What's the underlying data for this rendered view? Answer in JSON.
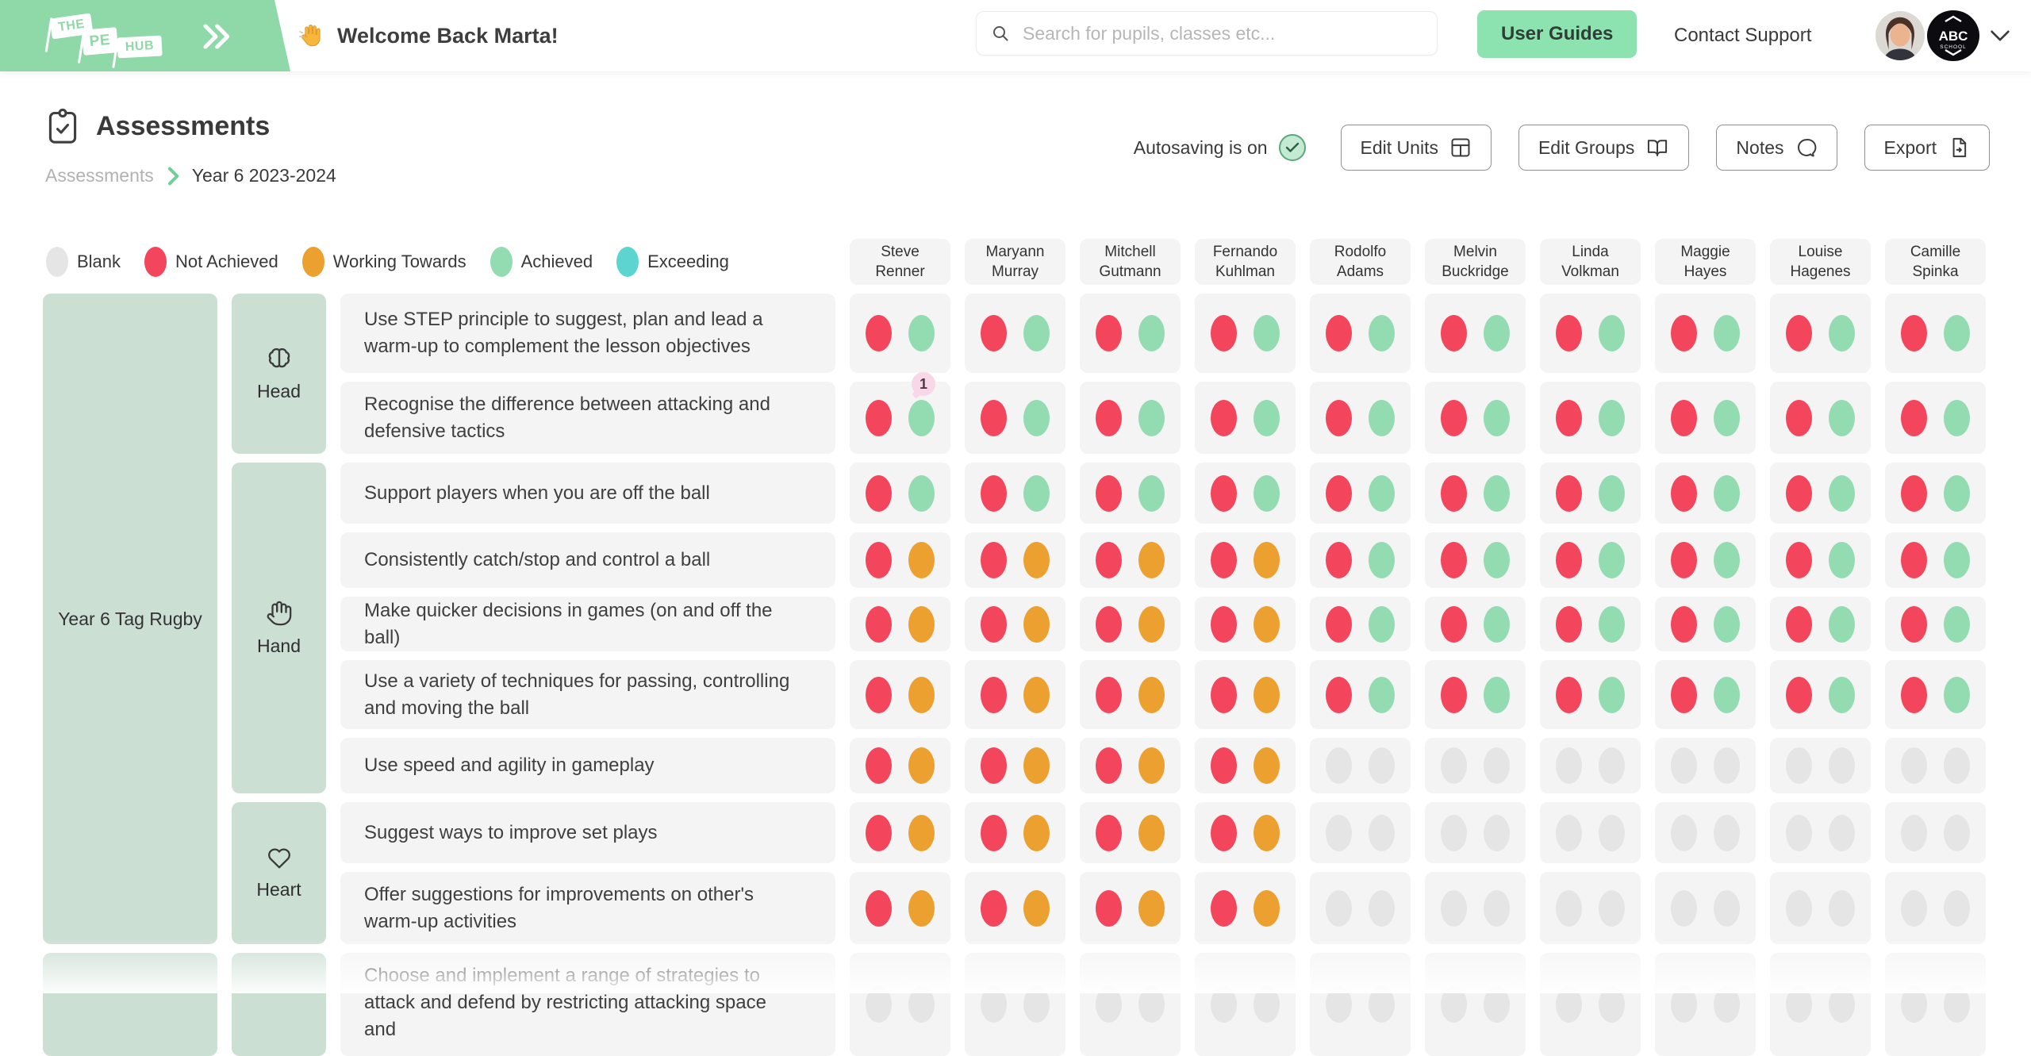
{
  "header": {
    "logo": {
      "word1": "THE",
      "word2": "PE",
      "word3": "HUB"
    },
    "welcome_text": "Welcome Back Marta!",
    "search_placeholder": "Search for pupils, classes etc...",
    "user_guides_label": "User Guides",
    "contact_support_label": "Contact Support",
    "school_badge": {
      "line1": "ABC",
      "line2": "SCHOOL"
    }
  },
  "toolbar": {
    "page_title": "Assessments",
    "breadcrumb": {
      "root": "Assessments",
      "current": "Year 6 2023-2024"
    },
    "autosave_label": "Autosaving is on",
    "buttons": [
      {
        "label": "Edit Units"
      },
      {
        "label": "Edit Groups"
      },
      {
        "label": "Notes"
      },
      {
        "label": "Export"
      }
    ]
  },
  "status_colors": {
    "B": "#E5E5E5",
    "N": "#F3455C",
    "W": "#ECA030",
    "A": "#93DCB2",
    "E": "#5CD5D1"
  },
  "legend": {
    "items": [
      {
        "code": "B",
        "label": "Blank"
      },
      {
        "code": "N",
        "label": "Not Achieved"
      },
      {
        "code": "W",
        "label": "Working Towards"
      },
      {
        "code": "A",
        "label": "Achieved"
      },
      {
        "code": "E",
        "label": "Exceeding"
      }
    ]
  },
  "students": [
    {
      "first": "Steve",
      "last": "Renner"
    },
    {
      "first": "Maryann",
      "last": "Murray"
    },
    {
      "first": "Mitchell",
      "last": "Gutmann"
    },
    {
      "first": "Fernando",
      "last": "Kuhlman"
    },
    {
      "first": "Rodolfo",
      "last": "Adams"
    },
    {
      "first": "Melvin",
      "last": "Buckridge"
    },
    {
      "first": "Linda",
      "last": "Volkman"
    },
    {
      "first": "Maggie",
      "last": "Hayes"
    },
    {
      "first": "Louise",
      "last": "Hagenes"
    },
    {
      "first": "Camille",
      "last": "Spinka"
    }
  ],
  "units": [
    {
      "name": "Year 6 Tag Rugby",
      "row_start": 1,
      "row_end": 9
    },
    {
      "name": "",
      "row_start": 10,
      "row_end": 10
    }
  ],
  "categories": [
    {
      "label": "Head",
      "icon": "brain",
      "row_start": 1,
      "row_end": 2
    },
    {
      "label": "Hand",
      "icon": "hand",
      "row_start": 3,
      "row_end": 7
    },
    {
      "label": "Heart",
      "icon": "heart",
      "row_start": 8,
      "row_end": 9
    },
    {
      "label": "",
      "icon": "",
      "row_start": 10,
      "row_end": 10
    }
  ],
  "rows": [
    {
      "objective": "Use STEP principle to suggest, plan and lead a warm-up to complement the lesson objectives",
      "marks": [
        "NA",
        "NA",
        "NA",
        "NA",
        "NA",
        "NA",
        "NA",
        "NA",
        "NA",
        "NA"
      ]
    },
    {
      "objective": "Recognise the difference between attacking and defensive tactics",
      "marks": [
        "NA",
        "NA",
        "NA",
        "NA",
        "NA",
        "NA",
        "NA",
        "NA",
        "NA",
        "NA"
      ]
    },
    {
      "objective": "Support players when you are off the ball",
      "marks": [
        "NA",
        "NA",
        "NA",
        "NA",
        "NA",
        "NA",
        "NA",
        "NA",
        "NA",
        "NA"
      ]
    },
    {
      "objective": "Consistently catch/stop and control a ball",
      "marks": [
        "NW",
        "NW",
        "NW",
        "NW",
        "NA",
        "NA",
        "NA",
        "NA",
        "NA",
        "NA"
      ]
    },
    {
      "objective": "Make quicker decisions in games (on and off the ball)",
      "marks": [
        "NW",
        "NW",
        "NW",
        "NW",
        "NA",
        "NA",
        "NA",
        "NA",
        "NA",
        "NA"
      ]
    },
    {
      "objective": "Use a variety of techniques for passing, controlling and moving the ball",
      "marks": [
        "NW",
        "NW",
        "NW",
        "NW",
        "NA",
        "NA",
        "NA",
        "NA",
        "NA",
        "NA"
      ]
    },
    {
      "objective": "Use speed and agility in gameplay",
      "marks": [
        "NW",
        "NW",
        "NW",
        "NW",
        "BB",
        "BB",
        "BB",
        "BB",
        "BB",
        "BB"
      ]
    },
    {
      "objective": "Suggest ways to improve set plays",
      "marks": [
        "NW",
        "NW",
        "NW",
        "NW",
        "BB",
        "BB",
        "BB",
        "BB",
        "BB",
        "BB"
      ]
    },
    {
      "objective": "Offer suggestions for improvements on other's warm-up activities",
      "marks": [
        "NW",
        "NW",
        "NW",
        "NW",
        "BB",
        "BB",
        "BB",
        "BB",
        "BB",
        "BB"
      ]
    },
    {
      "objective": "Choose and implement a range of strategies to attack and defend by restricting attacking space and",
      "marks": [
        "BB",
        "BB",
        "BB",
        "BB",
        "BB",
        "BB",
        "BB",
        "BB",
        "BB",
        "BB"
      ]
    }
  ],
  "badges": [
    {
      "row": 2,
      "student": 1,
      "label": "1"
    }
  ]
}
